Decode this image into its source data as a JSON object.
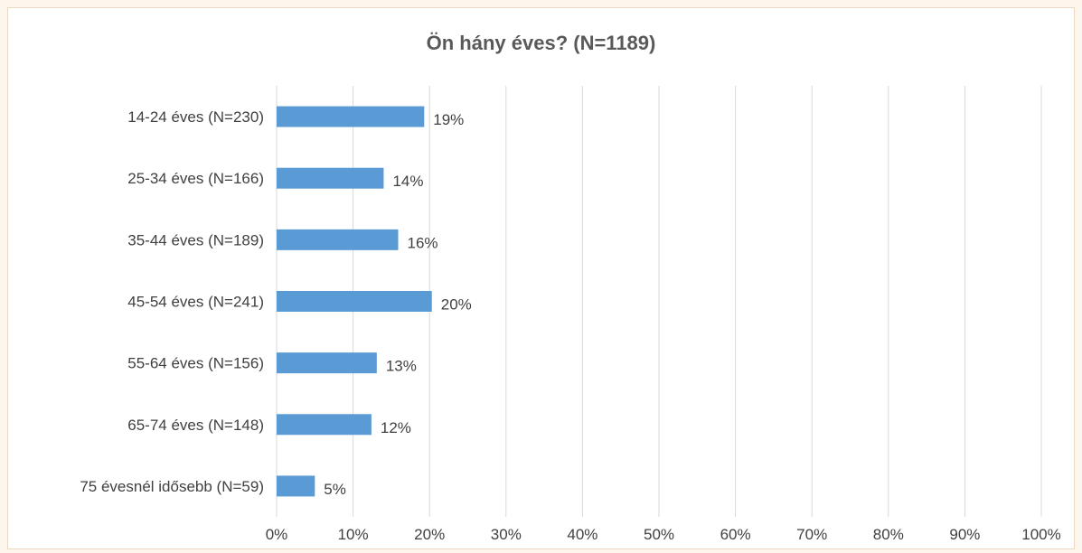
{
  "chart_data": {
    "type": "bar",
    "orientation": "horizontal",
    "title": "Ön hány éves? (N=1189)",
    "categories": [
      "14-24 éves (N=230)",
      "25-34 éves (N=166)",
      "35-44 éves (N=189)",
      "45-54 éves (N=241)",
      "55-64 éves (N=156)",
      "65-74 éves (N=148)",
      "75 évesnél idősebb (N=59)"
    ],
    "values": [
      19.3,
      14.0,
      15.9,
      20.3,
      13.1,
      12.4,
      5.0
    ],
    "data_labels": [
      "19%",
      "14%",
      "16%",
      "20%",
      "13%",
      "12%",
      "5%"
    ],
    "xlim": [
      0,
      100
    ],
    "x_ticks": [
      "0%",
      "10%",
      "20%",
      "30%",
      "40%",
      "50%",
      "60%",
      "70%",
      "80%",
      "90%",
      "100%"
    ],
    "grid": "vertical",
    "legend": "none",
    "bar_color": "#5b9bd5",
    "grid_color": "#d9d9d9"
  }
}
